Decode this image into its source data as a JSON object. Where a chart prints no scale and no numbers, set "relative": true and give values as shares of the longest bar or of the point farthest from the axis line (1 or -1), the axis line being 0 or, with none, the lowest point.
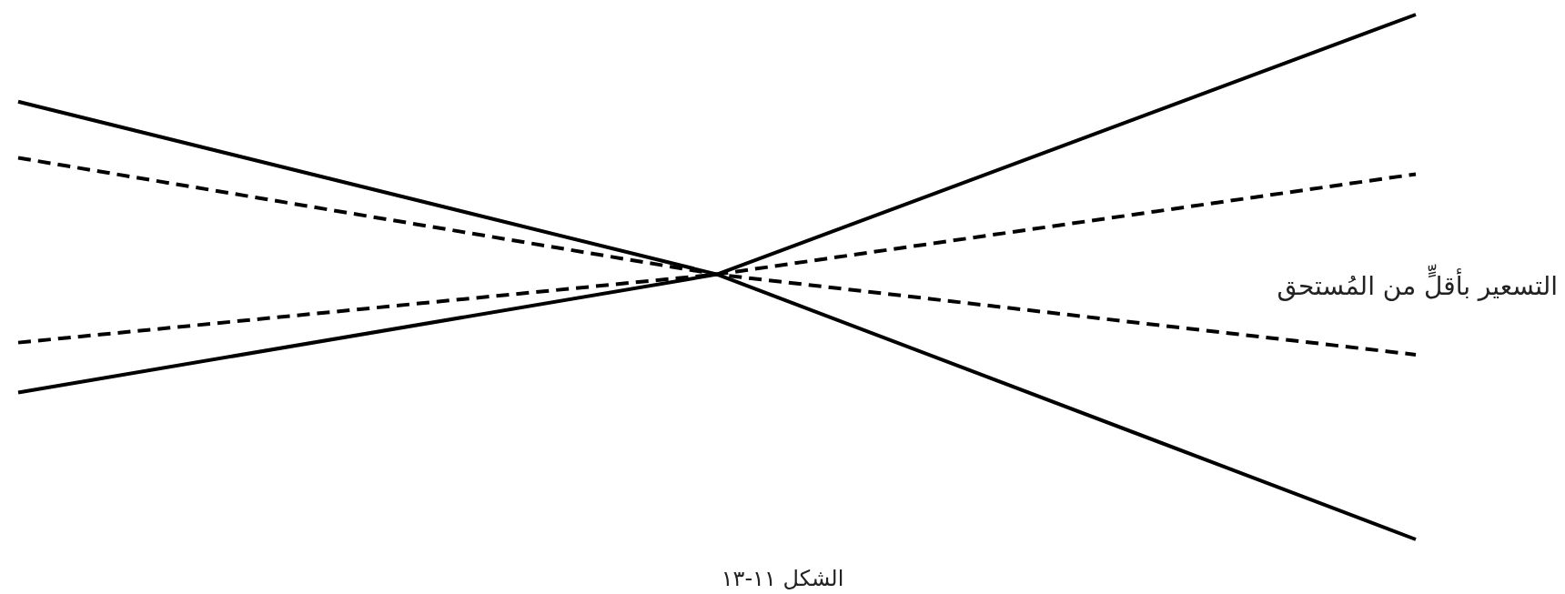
{
  "chart_data": {
    "type": "line",
    "title": "الشكل ١١-١٣",
    "relative": true,
    "categories": [
      null,
      null,
      null
    ],
    "series": [
      {
        "color": "#000000",
        "line_style": "solid",
        "values": [
          0.834,
          0.505,
          0
        ]
      },
      {
        "color": "#000000",
        "line_style": "solid",
        "values": [
          0.28,
          0.505,
          1
        ]
      },
      {
        "color": "#000000",
        "line_style": "dashed",
        "values": [
          0.727,
          0.505,
          0.352
        ]
      },
      {
        "color": "#000000",
        "line_style": "dashed",
        "values": [
          0.375,
          0.505,
          0.696
        ]
      }
    ],
    "annotations": [
      "التسعير بأقلٍّ من المُستحق"
    ],
    "marker": "none",
    "grid": false
  }
}
